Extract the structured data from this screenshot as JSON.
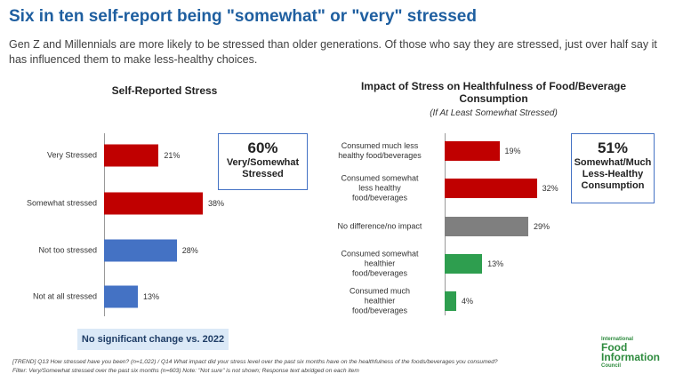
{
  "header": {
    "title": "Six in ten self-report being \"somewhat\" or \"very\" stressed",
    "subtitle": "Gen Z and Millennials are more likely to be stressed than older generations. Of those who say they are stressed, just over half say it has influenced them to make less-healthy choices."
  },
  "chart_data": [
    {
      "type": "bar",
      "orientation": "horizontal",
      "title": "Self-Reported Stress",
      "categories": [
        "Very Stressed",
        "Somewhat stressed",
        "Not too stressed",
        "Not at all stressed"
      ],
      "values": [
        21,
        38,
        28,
        13
      ],
      "value_labels": [
        "21%",
        "38%",
        "28%",
        "13%"
      ],
      "colors": [
        "#c00000",
        "#c00000",
        "#4472c4",
        "#4472c4"
      ],
      "xlim": [
        0,
        50
      ]
    },
    {
      "type": "bar",
      "orientation": "horizontal",
      "title": "Impact of Stress on Healthfulness of Food/Beverage Consumption",
      "subtitle": "(If At Least Somewhat Stressed)",
      "categories": [
        "Consumed much less\nhealthy food/beverages",
        "Consumed somewhat\nless healthy\nfood/beverages",
        "No difference/no impact",
        "Consumed somewhat\nhealthier\nfood/beverages",
        "Consumed much\nhealthier\nfood/beverages"
      ],
      "values": [
        19,
        32,
        29,
        13,
        4
      ],
      "value_labels": [
        "19%",
        "32%",
        "29%",
        "13%",
        "4%"
      ],
      "colors": [
        "#c00000",
        "#c00000",
        "#7f7f7f",
        "#2e9e4f",
        "#2e9e4f"
      ],
      "xlim": [
        0,
        50
      ]
    }
  ],
  "callouts": [
    {
      "value": "60%",
      "text": "Very/Somewhat\nStressed"
    },
    {
      "value": "51%",
      "text": "Somewhat/Much\nLess-Healthy\nConsumption"
    }
  ],
  "note": "No significant change vs. 2022",
  "footer": [
    "[TREND] Q13 How stressed have you been? (n=1,022) / Q14 What impact did your stress level over the past six months have on the healthfulness of the foods/beverages you consumed?",
    "Filter: Very/Somewhat stressed over the past six months (n=603) Note: \"Not sure\" is not shown; Response text abridged on each item"
  ],
  "logo": {
    "top": "International",
    "line1": "Food",
    "line2": "Information",
    "bottom": "Council"
  }
}
